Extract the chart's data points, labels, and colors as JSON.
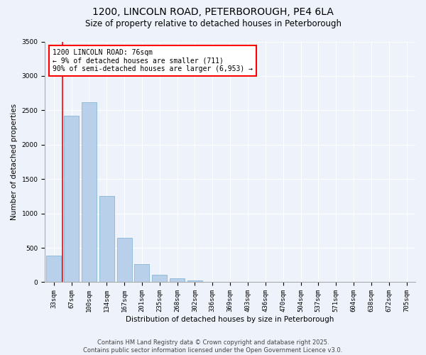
{
  "title": "1200, LINCOLN ROAD, PETERBOROUGH, PE4 6LA",
  "subtitle": "Size of property relative to detached houses in Peterborough",
  "xlabel": "Distribution of detached houses by size in Peterborough",
  "ylabel": "Number of detached properties",
  "categories": [
    "33sqm",
    "67sqm",
    "100sqm",
    "134sqm",
    "167sqm",
    "201sqm",
    "235sqm",
    "268sqm",
    "302sqm",
    "336sqm",
    "369sqm",
    "403sqm",
    "436sqm",
    "470sqm",
    "504sqm",
    "537sqm",
    "571sqm",
    "604sqm",
    "638sqm",
    "672sqm",
    "705sqm"
  ],
  "values": [
    390,
    2420,
    2620,
    1250,
    650,
    260,
    105,
    55,
    30,
    5,
    2,
    0,
    0,
    0,
    0,
    0,
    0,
    0,
    0,
    0,
    0
  ],
  "bar_color": "#b8d0ea",
  "bar_edge_color": "#7aaed0",
  "background_color": "#eef2fb",
  "grid_color": "#ffffff",
  "red_line_x": 0.5,
  "annotation_title": "1200 LINCOLN ROAD: 76sqm",
  "annotation_line1": "← 9% of detached houses are smaller (711)",
  "annotation_line2": "90% of semi-detached houses are larger (6,953) →",
  "ylim": [
    0,
    3500
  ],
  "yticks": [
    0,
    500,
    1000,
    1500,
    2000,
    2500,
    3000,
    3500
  ],
  "footer1": "Contains HM Land Registry data © Crown copyright and database right 2025.",
  "footer2": "Contains public sector information licensed under the Open Government Licence v3.0.",
  "title_fontsize": 10,
  "subtitle_fontsize": 8.5,
  "axis_label_fontsize": 7.5,
  "tick_fontsize": 6.5,
  "annotation_fontsize": 7,
  "footer_fontsize": 6
}
